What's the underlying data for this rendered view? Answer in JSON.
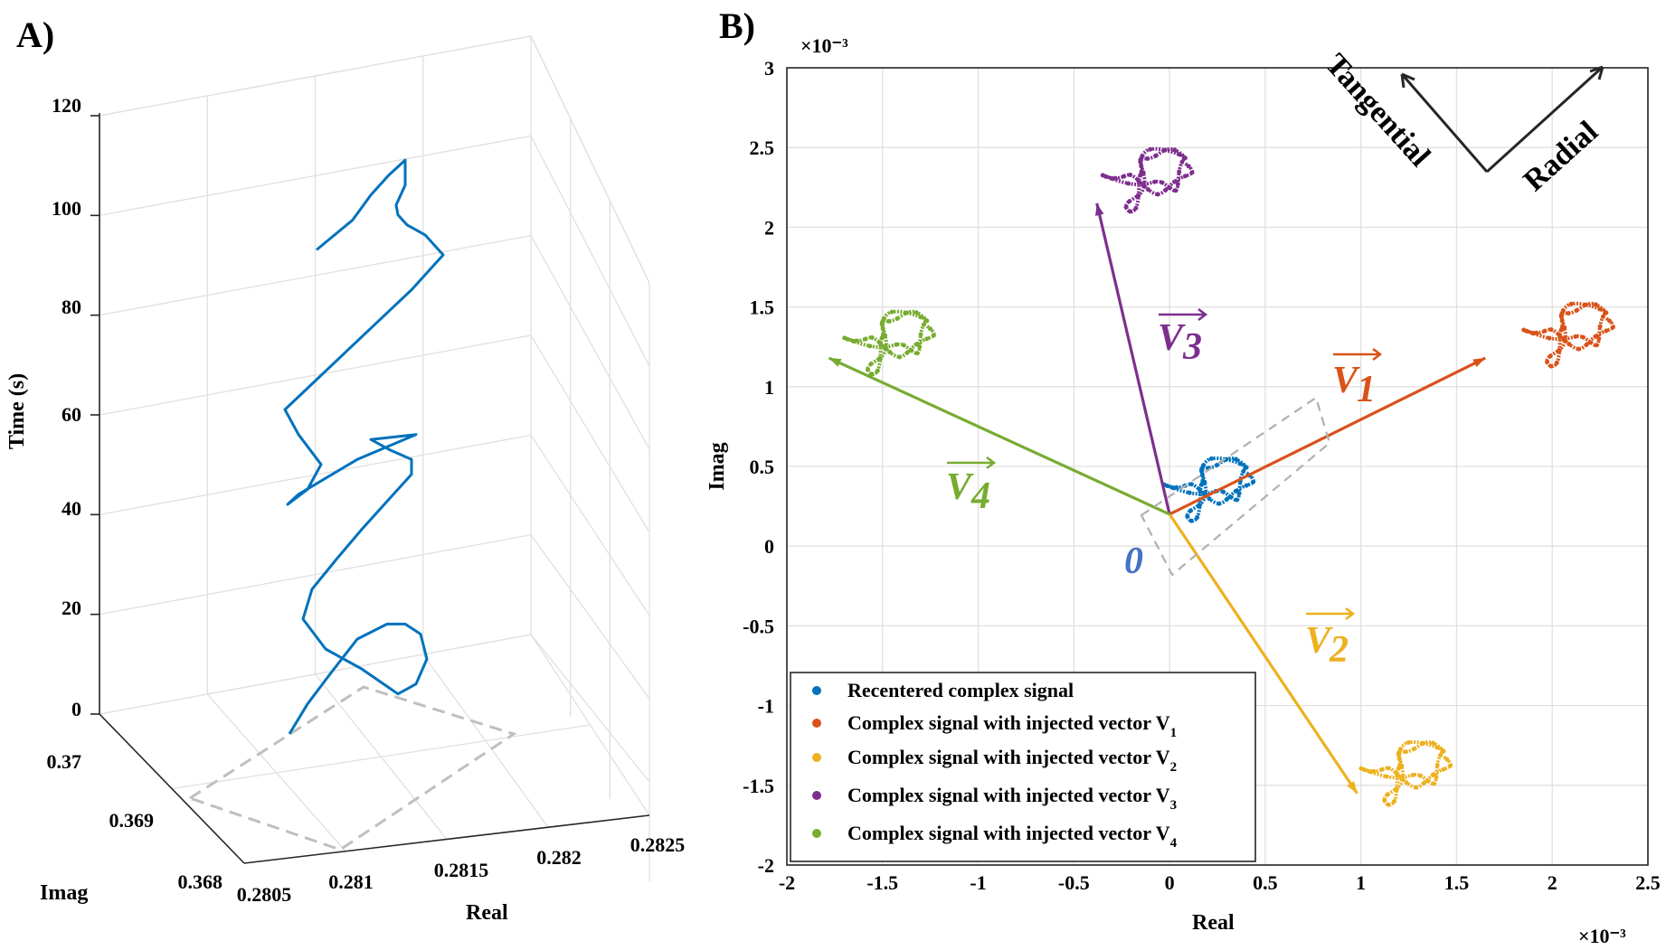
{
  "panels": {
    "a_label": "A)",
    "b_label": "B)"
  },
  "chart_data": [
    {
      "type": "line",
      "dimensions": 3,
      "panel": "A)",
      "xlabel": "Real",
      "ylabel": "Imag",
      "zlabel": "Time (s)",
      "xticks": [
        "0.2805",
        "0.281",
        "0.2815",
        "0.282",
        "0.2825"
      ],
      "yticks": [
        "0.368",
        "0.369",
        "0.37"
      ],
      "zticks": [
        "0",
        "20",
        "40",
        "60",
        "80",
        "100",
        "120"
      ],
      "xlim": [
        0.2805,
        0.2825
      ],
      "ylim": [
        0.368,
        0.37
      ],
      "zlim": [
        0,
        120
      ],
      "grid": true,
      "series": [
        {
          "color": "#0072BD",
          "z": [
            6,
            12,
            18,
            25,
            28,
            28,
            26,
            21,
            16,
            14,
            19,
            23,
            29,
            35,
            41,
            47,
            53,
            58,
            61,
            63,
            65,
            66,
            61,
            54,
            52,
            55,
            60,
            66,
            71,
            77,
            83,
            89,
            95,
            102,
            106,
            108,
            110,
            112,
            116,
            121,
            118,
            114,
            109,
            103
          ]
        }
      ],
      "footprint": {
        "style": "dashed",
        "color": "#bfbfbf"
      }
    },
    {
      "type": "scatter",
      "panel": "B)",
      "xlabel": "Real",
      "ylabel": "Imag",
      "x_exponent": "×10⁻³",
      "y_exponent": "×10⁻³",
      "xlim": [
        -2,
        2.5
      ],
      "ylim": [
        -2,
        3
      ],
      "xticks": [
        "-2",
        "-1.5",
        "-1",
        "-0.5",
        "0",
        "0.5",
        "1",
        "1.5",
        "2",
        "2.5"
      ],
      "yticks": [
        "-2",
        "-1.5",
        "-1",
        "-0.5",
        "0",
        "0.5",
        "1",
        "1.5",
        "2",
        "2.5",
        "3"
      ],
      "grid": true,
      "origin": {
        "label": "0",
        "x": 0,
        "y": 0.2
      },
      "series": [
        {
          "name": "Recentered complex signal",
          "color": "#0072BD",
          "cx": 0.22,
          "cy": 0.38
        },
        {
          "name": "Complex signal with injected vector V1",
          "color": "#D95319",
          "cx": 2.1,
          "cy": 1.35
        },
        {
          "name": "Complex signal with injected vector V2",
          "color": "#EDB120",
          "cx": 1.25,
          "cy": -1.4
        },
        {
          "name": "Complex signal with injected vector V3",
          "color": "#7E2F8E",
          "cx": -0.1,
          "cy": 2.32
        },
        {
          "name": "Complex signal with injected vector V4",
          "color": "#77AC30",
          "cx": -1.45,
          "cy": 1.3
        }
      ],
      "legend_items": [
        {
          "main": "Recentered complex signal",
          "sub": ""
        },
        {
          "main": "Complex signal with injected vector V",
          "sub": "1"
        },
        {
          "main": "Complex signal with injected vector V",
          "sub": "2"
        },
        {
          "main": "Complex signal with injected vector V",
          "sub": "3"
        },
        {
          "main": "Complex signal with injected vector V",
          "sub": "4"
        }
      ],
      "legend_position": "bottom-left",
      "vectors": [
        {
          "label": "V",
          "sub": "1",
          "color": "#D95319",
          "to": [
            1.65,
            1.18
          ]
        },
        {
          "label": "V",
          "sub": "2",
          "color": "#EDB120",
          "to": [
            0.98,
            -1.55
          ]
        },
        {
          "label": "V",
          "sub": "3",
          "color": "#7E2F8E",
          "to": [
            -0.38,
            2.15
          ]
        },
        {
          "label": "V",
          "sub": "4",
          "color": "#77AC30",
          "to": [
            -1.78,
            1.18
          ]
        }
      ],
      "direction_labels": {
        "tangential": "Tangential",
        "radial": "Radial"
      }
    }
  ]
}
